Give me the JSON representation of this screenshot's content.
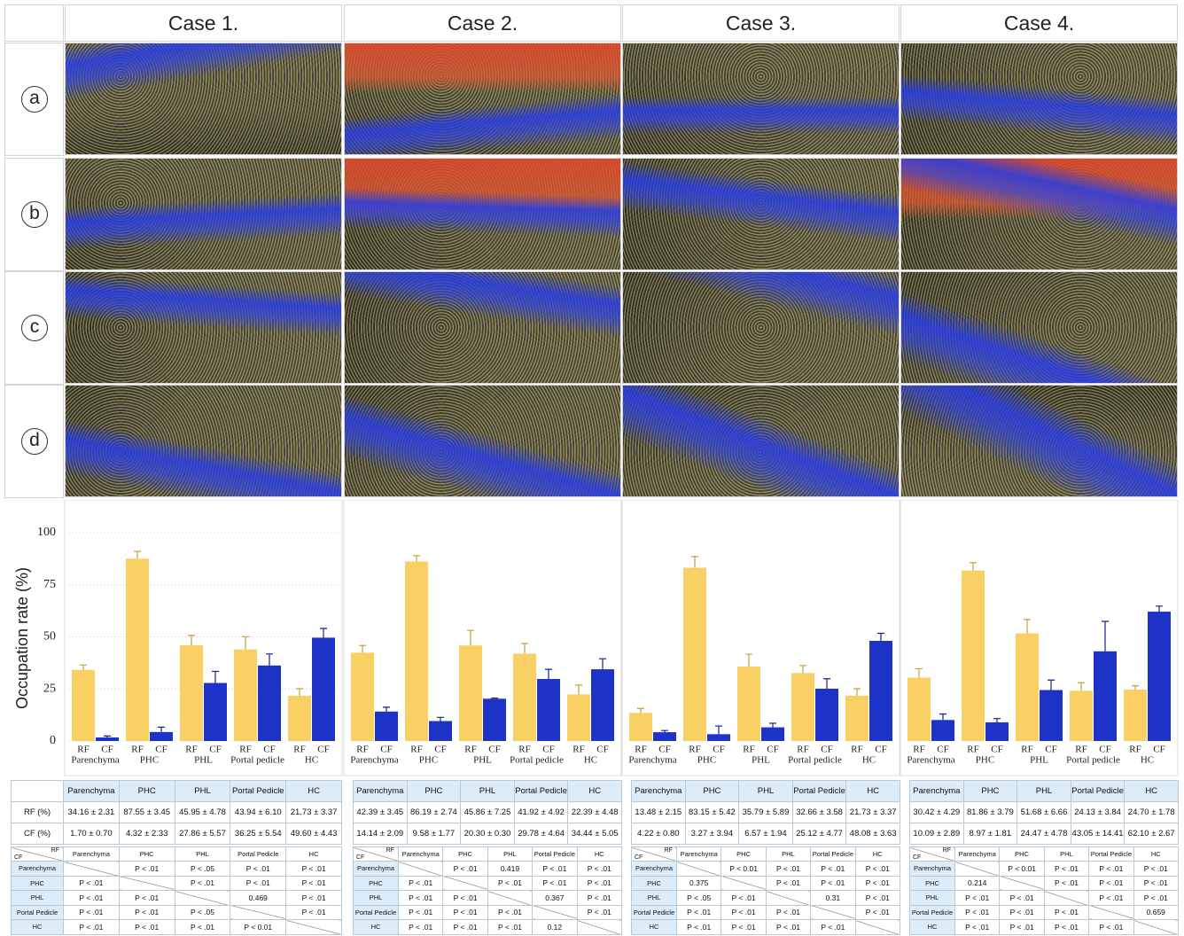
{
  "header": {
    "columns": [
      "Case 1.",
      "Case 2.",
      "Case 3.",
      "Case 4."
    ],
    "row_labels": [
      "a",
      "b",
      "c",
      "d"
    ]
  },
  "chart_data": [
    {
      "type": "bar",
      "y_label": "Occupation rate (%)",
      "categories": [
        "Parenchyma",
        "PHC",
        "PHL",
        "Portal pedicle",
        "HC"
      ],
      "series": [
        {
          "name": "RF",
          "color": "#f8d064",
          "values": [
            34.16,
            87.55,
            45.95,
            43.94,
            21.73
          ],
          "errors": [
            2.31,
            3.45,
            4.78,
            6.1,
            3.37
          ]
        },
        {
          "name": "CF",
          "color": "#1d33c8",
          "values": [
            1.7,
            4.32,
            27.86,
            36.25,
            49.6
          ],
          "errors": [
            0.7,
            2.33,
            5.57,
            5.54,
            4.43
          ]
        }
      ],
      "ylim": [
        0,
        100
      ],
      "yticks": [
        0,
        25,
        50,
        75,
        100
      ],
      "grid": true
    },
    {
      "type": "bar",
      "categories": [
        "Parenchyma",
        "PHC",
        "PHL",
        "Portal pedicle",
        "HC"
      ],
      "series": [
        {
          "name": "RF",
          "color": "#f8d064",
          "values": [
            42.39,
            86.19,
            45.86,
            41.92,
            22.39
          ],
          "errors": [
            3.45,
            2.74,
            7.25,
            4.92,
            4.48
          ]
        },
        {
          "name": "CF",
          "color": "#1d33c8",
          "values": [
            14.14,
            9.58,
            20.3,
            29.78,
            34.44
          ],
          "errors": [
            2.09,
            1.77,
            0.3,
            4.64,
            5.05
          ]
        }
      ],
      "ylim": [
        0,
        100
      ]
    },
    {
      "type": "bar",
      "categories": [
        "Parenchyma",
        "PHC",
        "PHL",
        "Portal pedicle",
        "HC"
      ],
      "series": [
        {
          "name": "RF",
          "color": "#f8d064",
          "values": [
            13.48,
            83.15,
            35.79,
            32.66,
            21.73
          ],
          "errors": [
            2.15,
            5.42,
            5.89,
            3.58,
            3.37
          ]
        },
        {
          "name": "CF",
          "color": "#1d33c8",
          "values": [
            4.22,
            3.27,
            6.57,
            25.12,
            48.08
          ],
          "errors": [
            0.8,
            3.94,
            1.94,
            4.77,
            3.63
          ]
        }
      ],
      "ylim": [
        0,
        100
      ]
    },
    {
      "type": "bar",
      "categories": [
        "Parenchyma",
        "PHC",
        "PHL",
        "Portal pedicle",
        "HC"
      ],
      "series": [
        {
          "name": "RF",
          "color": "#f8d064",
          "values": [
            30.42,
            81.86,
            51.68,
            24.13,
            24.7
          ],
          "errors": [
            4.29,
            3.79,
            6.66,
            3.84,
            1.78
          ]
        },
        {
          "name": "CF",
          "color": "#1d33c8",
          "values": [
            10.09,
            8.97,
            24.47,
            43.05,
            62.1
          ],
          "errors": [
            2.89,
            1.81,
            4.78,
            14.41,
            2.67
          ]
        }
      ],
      "ylim": [
        0,
        100
      ]
    }
  ],
  "tables": [
    {
      "stats": {
        "columns": [
          "Parenchyma",
          "PHC",
          "PHL",
          "Portal Pedicle",
          "HC"
        ],
        "row_labels": [
          "RF (%)",
          "CF (%)"
        ],
        "rows": [
          [
            "34.16 ± 2.31",
            "87.55 ± 3.45",
            "45.95 ± 4.78",
            "43.94 ± 6.10",
            "21.73 ± 3.37"
          ],
          [
            "1.70 ± 0.70",
            "4.32 ± 2.33",
            "27.86 ± 5.57",
            "36.25 ± 5.54",
            "49.60 ± 4.43"
          ]
        ]
      },
      "pvalues": {
        "corner": {
          "column": "RF",
          "row": "CF"
        },
        "columns": [
          "Parenchyma",
          "PHC",
          "PHL",
          "Portal Pedicle",
          "HC"
        ],
        "row_labels": [
          "Parenchyma",
          "PHC",
          "PHL",
          "Portal Pedicle",
          "HC"
        ],
        "rows": [
          [
            null,
            "P < .01",
            "P < .05",
            "P < .01",
            "P < .01"
          ],
          [
            "P < .01",
            null,
            "P < .01",
            "P < .01",
            "P < .01"
          ],
          [
            "P < .01",
            "P < .01",
            null,
            "0.469",
            "P < .01"
          ],
          [
            "P < .01",
            "P < .01",
            "P < .05",
            null,
            "P < .01"
          ],
          [
            "P < .01",
            "P < .01",
            "P < .01",
            "P < 0.01",
            null
          ]
        ]
      }
    },
    {
      "stats": {
        "columns": [
          "Parenchyma",
          "PHC",
          "PHL",
          "Portal Pedicle",
          "HC"
        ],
        "rows": [
          [
            "42.39 ± 3.45",
            "86.19 ± 2.74",
            "45.86 ± 7.25",
            "41.92 ± 4.92",
            "22.39 ± 4.48"
          ],
          [
            "14.14 ± 2.09",
            "9.58 ± 1.77",
            "20.30 ± 0.30",
            "29.78 ± 4.64",
            "34.44 ± 5.05"
          ]
        ]
      },
      "pvalues": {
        "corner": {
          "column": "RF",
          "row": "CF"
        },
        "columns": [
          "Parenchyma",
          "PHC",
          "PHL",
          "Portal Pedicle",
          "HC"
        ],
        "row_labels": [
          "Parenchyma",
          "PHC",
          "PHL",
          "Portal Pedicle",
          "HC"
        ],
        "rows": [
          [
            null,
            "P < .01",
            "0.419",
            "P < .01",
            "P < .01"
          ],
          [
            "P < .01",
            null,
            "P < .01",
            "P < .01",
            "P < .01"
          ],
          [
            "P < .01",
            "P < .01",
            null,
            "0.367",
            "P < .01"
          ],
          [
            "P < .01",
            "P < .01",
            "P < .01",
            null,
            "P < .01"
          ],
          [
            "P < .01",
            "P < .01",
            "P < .01",
            "0.12",
            null
          ]
        ]
      }
    },
    {
      "stats": {
        "columns": [
          "Parenchyma",
          "PHC",
          "PHL",
          "Portal Pedicle",
          "HC"
        ],
        "rows": [
          [
            "13.48 ± 2.15",
            "83.15 ± 5.42",
            "35.79 ± 5.89",
            "32.66 ± 3.58",
            "21.73 ± 3.37"
          ],
          [
            "4.22 ± 0.80",
            "3.27 ± 3.94",
            "6.57 ± 1.94",
            "25.12 ± 4.77",
            "48.08 ± 3.63"
          ]
        ]
      },
      "pvalues": {
        "corner": {
          "column": "RF",
          "row": "CF"
        },
        "columns": [
          "Parenchyma",
          "PHC",
          "PHL",
          "Portal Pedicle",
          "HC"
        ],
        "row_labels": [
          "Parenchyma",
          "PHC",
          "PHL",
          "Portal Pedicle",
          "HC"
        ],
        "rows": [
          [
            null,
            "P < 0.01",
            "P < .01",
            "P < .01",
            "P < .01"
          ],
          [
            "0.375",
            null,
            "P < .01",
            "P < .01",
            "P < .01"
          ],
          [
            "P < .05",
            "P < .01",
            null,
            "0.31",
            "P < .01"
          ],
          [
            "P < .01",
            "P < .01",
            "P < .01",
            null,
            "P < .01"
          ],
          [
            "P < .01",
            "P < .01",
            "P < .01",
            "P < .01",
            null
          ]
        ]
      }
    },
    {
      "stats": {
        "columns": [
          "Parenchyma",
          "PHC",
          "PHL",
          "Portal Pedicle",
          "HC"
        ],
        "rows": [
          [
            "30.42 ± 4.29",
            "81.86 ± 3.79",
            "51.68 ± 6.66",
            "24.13 ± 3.84",
            "24.70 ± 1.78"
          ],
          [
            "10.09 ± 2.89",
            "8.97 ± 1.81",
            "24.47 ± 4.78",
            "43.05 ± 14.41",
            "62.10 ± 2.67"
          ]
        ]
      },
      "pvalues": {
        "corner": {
          "column": "RF",
          "row": "CF"
        },
        "columns": [
          "Parenchyma",
          "PHC",
          "PHL",
          "Portal Pedicle",
          "HC"
        ],
        "row_labels": [
          "Parenchyma",
          "PHC",
          "PHL",
          "Portal Pedicle",
          "HC"
        ],
        "rows": [
          [
            null,
            "P < 0.01",
            "P < .01",
            "P < .01",
            "P < .01"
          ],
          [
            "0.214",
            null,
            "P < .01",
            "P < .01",
            "P < .01"
          ],
          [
            "P < .01",
            "P < .01",
            null,
            "P < .01",
            "P < .01"
          ],
          [
            "P < .01",
            "P < .01",
            "P < .01",
            null,
            "0.659"
          ],
          [
            "P < .01",
            "P < .01",
            "P < .01",
            "P < .01",
            null
          ]
        ]
      }
    }
  ]
}
